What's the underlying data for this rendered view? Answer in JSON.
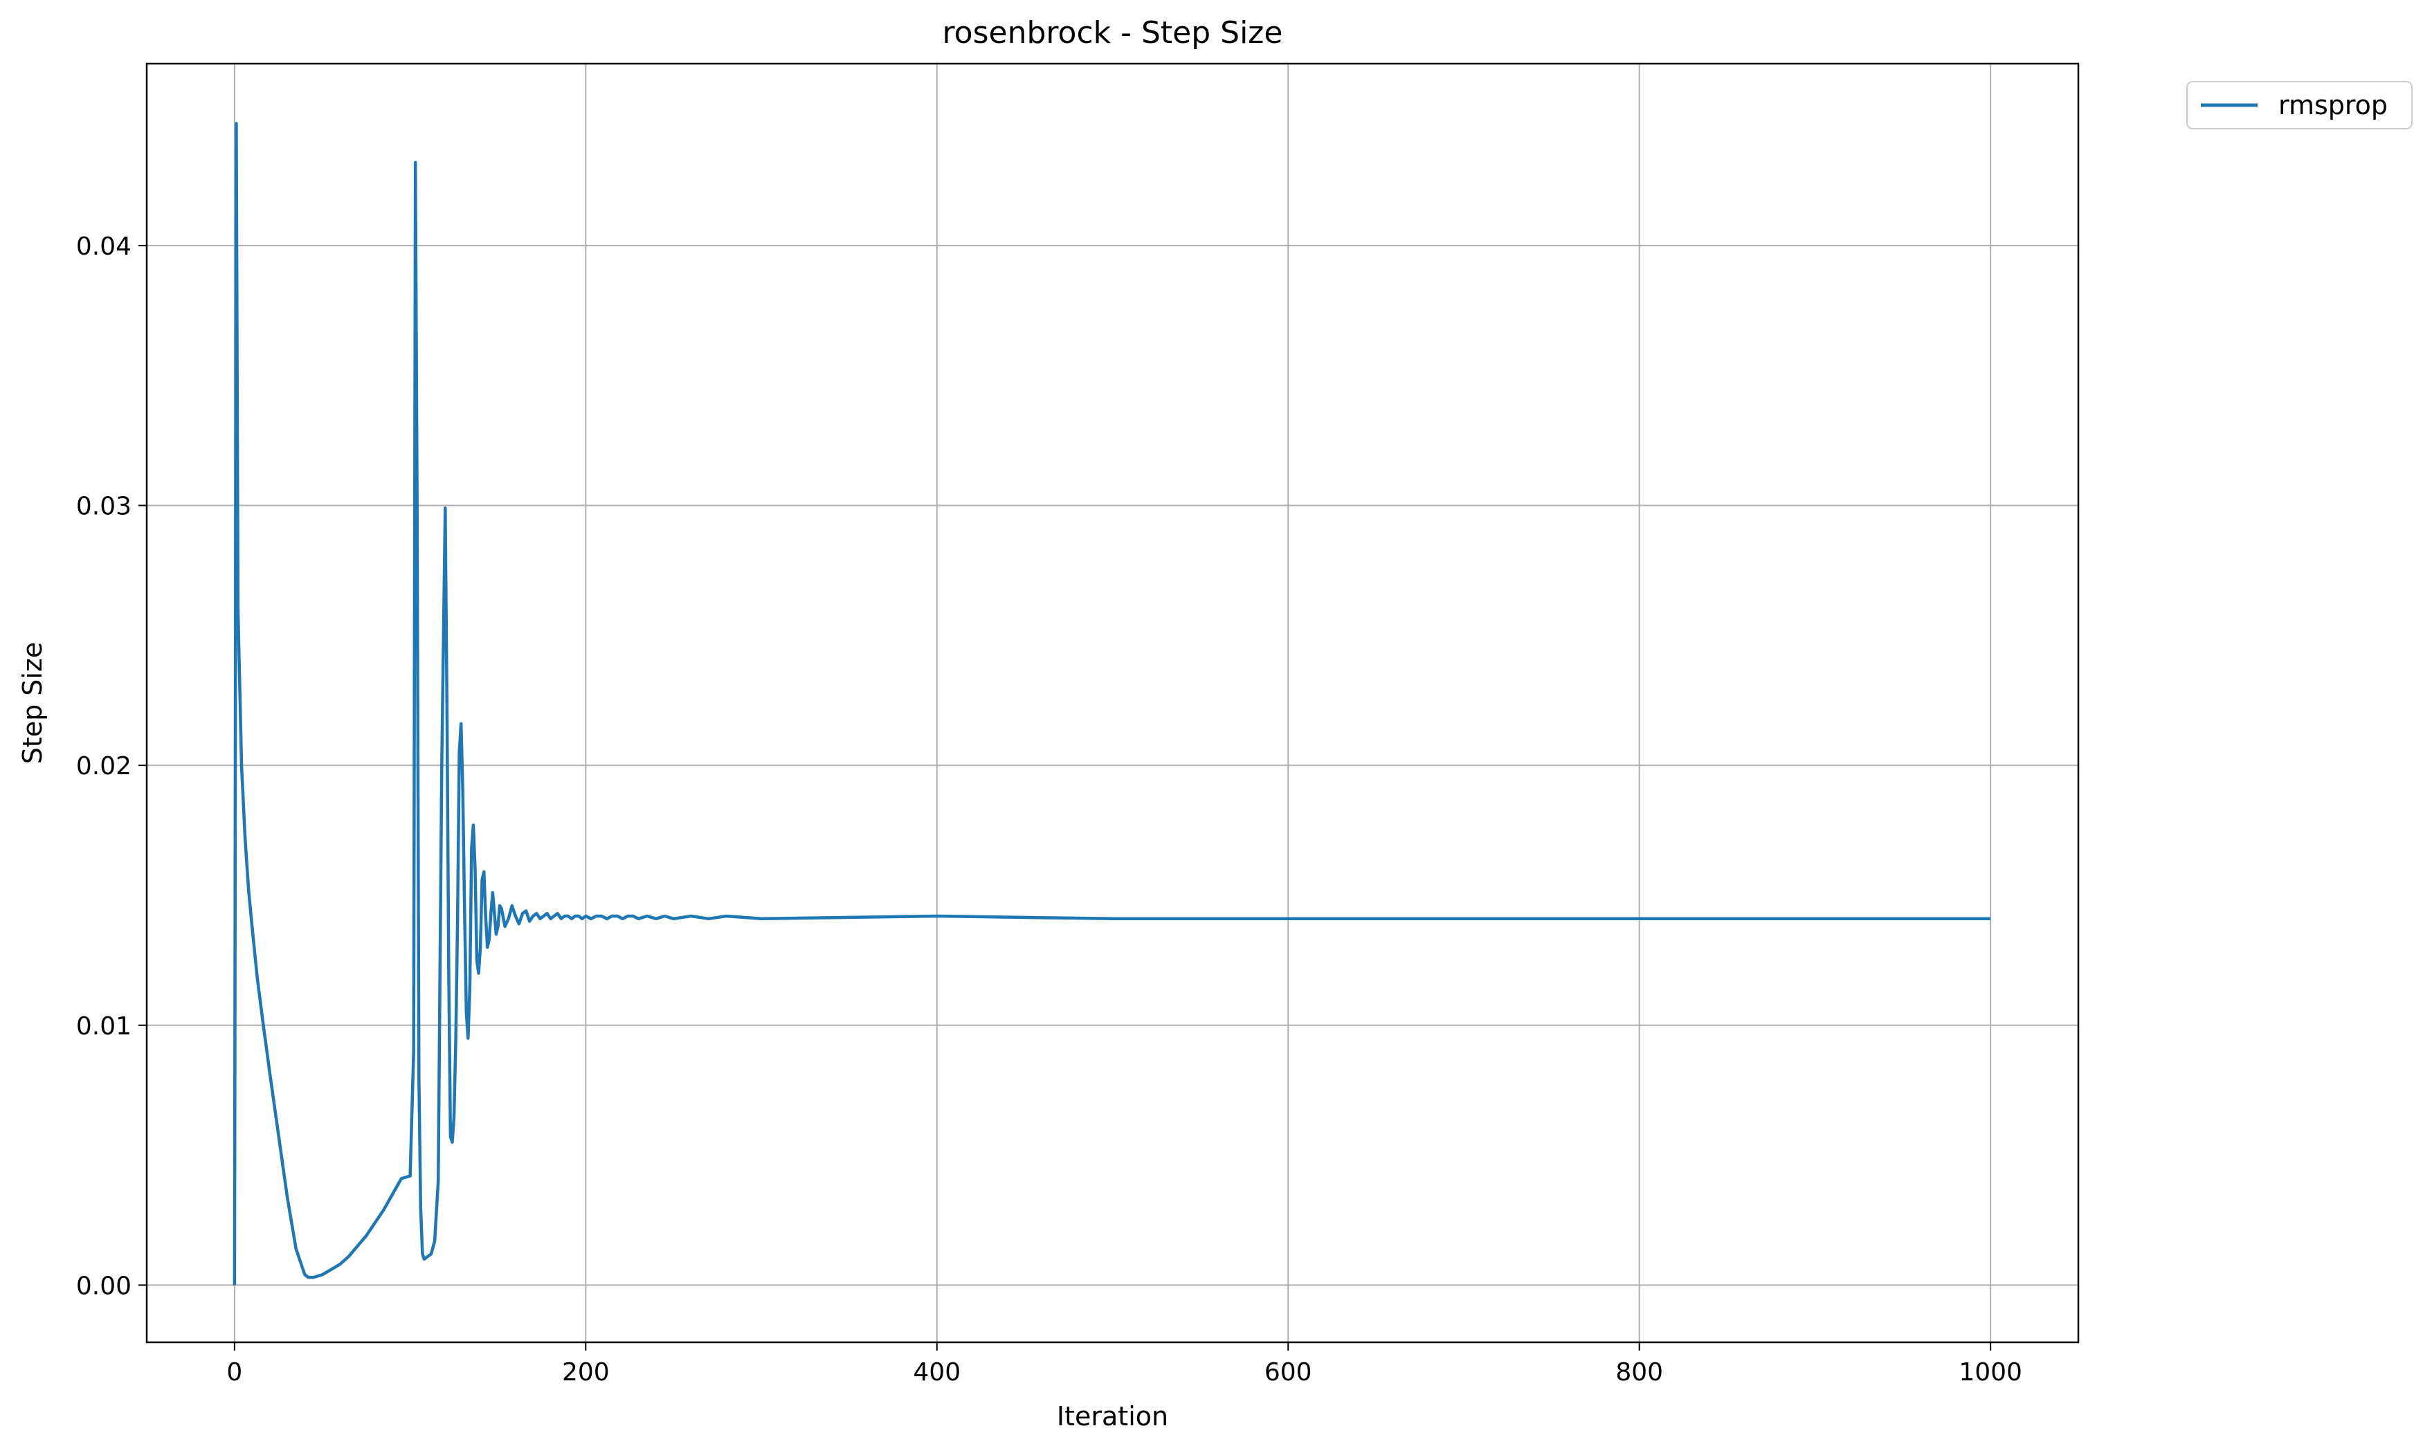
{
  "chart_data": {
    "type": "line",
    "title": "rosenbrock - Step Size",
    "xlabel": "Iteration",
    "ylabel": "Step Size",
    "xlim": [
      -50,
      1050
    ],
    "ylim": [
      -0.0022,
      0.047
    ],
    "xticks": [
      0,
      200,
      400,
      600,
      800,
      1000
    ],
    "xtick_labels": [
      "0",
      "200",
      "400",
      "600",
      "800",
      "1000"
    ],
    "yticks": [
      0.0,
      0.01,
      0.02,
      0.03,
      0.04
    ],
    "ytick_labels": [
      "0.00",
      "0.01",
      "0.02",
      "0.03",
      "0.04"
    ],
    "grid": true,
    "legend_position": "outside-top-right",
    "series": [
      {
        "name": "rmsprop",
        "color": "#1f77b4",
        "x": [
          0,
          1,
          2,
          4,
          6,
          8,
          10,
          13,
          16,
          20,
          25,
          30,
          35,
          40,
          42,
          45,
          50,
          55,
          60,
          65,
          70,
          75,
          80,
          85,
          90,
          95,
          100,
          102,
          103,
          104,
          105,
          106,
          107,
          108,
          110,
          112,
          114,
          116,
          118,
          120,
          121,
          122,
          123,
          124,
          125,
          126,
          127,
          128,
          129,
          130,
          131,
          132,
          133,
          134,
          135,
          136,
          137,
          138,
          139,
          140,
          141,
          142,
          143,
          144,
          145,
          146,
          147,
          148,
          149,
          150,
          151,
          152,
          154,
          156,
          158,
          160,
          162,
          164,
          166,
          168,
          170,
          172,
          174,
          176,
          178,
          180,
          182,
          184,
          186,
          188,
          190,
          192,
          194,
          196,
          198,
          200,
          203,
          206,
          209,
          212,
          215,
          218,
          221,
          224,
          227,
          230,
          235,
          240,
          245,
          250,
          260,
          270,
          280,
          300,
          400,
          500,
          600,
          700,
          800,
          900,
          1000
        ],
        "values": [
          0.0,
          0.0447,
          0.026,
          0.02,
          0.0172,
          0.0152,
          0.0138,
          0.0118,
          0.0102,
          0.0082,
          0.0058,
          0.0034,
          0.0014,
          0.0004,
          0.0003,
          0.0003,
          0.0004,
          0.0006,
          0.0008,
          0.0011,
          0.0015,
          0.0019,
          0.0024,
          0.0029,
          0.0035,
          0.0041,
          0.0042,
          0.009,
          0.0432,
          0.03,
          0.008,
          0.003,
          0.0012,
          0.001,
          0.0011,
          0.0012,
          0.0017,
          0.004,
          0.02,
          0.0299,
          0.022,
          0.012,
          0.0057,
          0.0055,
          0.0065,
          0.0095,
          0.014,
          0.0205,
          0.0216,
          0.019,
          0.0145,
          0.0105,
          0.0095,
          0.0115,
          0.0168,
          0.0177,
          0.016,
          0.0125,
          0.012,
          0.013,
          0.0156,
          0.0159,
          0.0142,
          0.013,
          0.0133,
          0.0143,
          0.0151,
          0.0143,
          0.0135,
          0.0138,
          0.0146,
          0.0145,
          0.0138,
          0.0141,
          0.0146,
          0.0142,
          0.0139,
          0.0143,
          0.0144,
          0.014,
          0.0142,
          0.0143,
          0.0141,
          0.0142,
          0.0143,
          0.0141,
          0.0142,
          0.0143,
          0.0141,
          0.0142,
          0.0142,
          0.0141,
          0.0142,
          0.0142,
          0.0141,
          0.0142,
          0.0141,
          0.0142,
          0.0142,
          0.0141,
          0.0142,
          0.0142,
          0.0141,
          0.0142,
          0.0142,
          0.0141,
          0.0142,
          0.0141,
          0.0142,
          0.0141,
          0.0142,
          0.0141,
          0.0142,
          0.0141,
          0.0142,
          0.0141,
          0.0141,
          0.0141,
          0.0141,
          0.0141,
          0.0141
        ]
      }
    ]
  }
}
